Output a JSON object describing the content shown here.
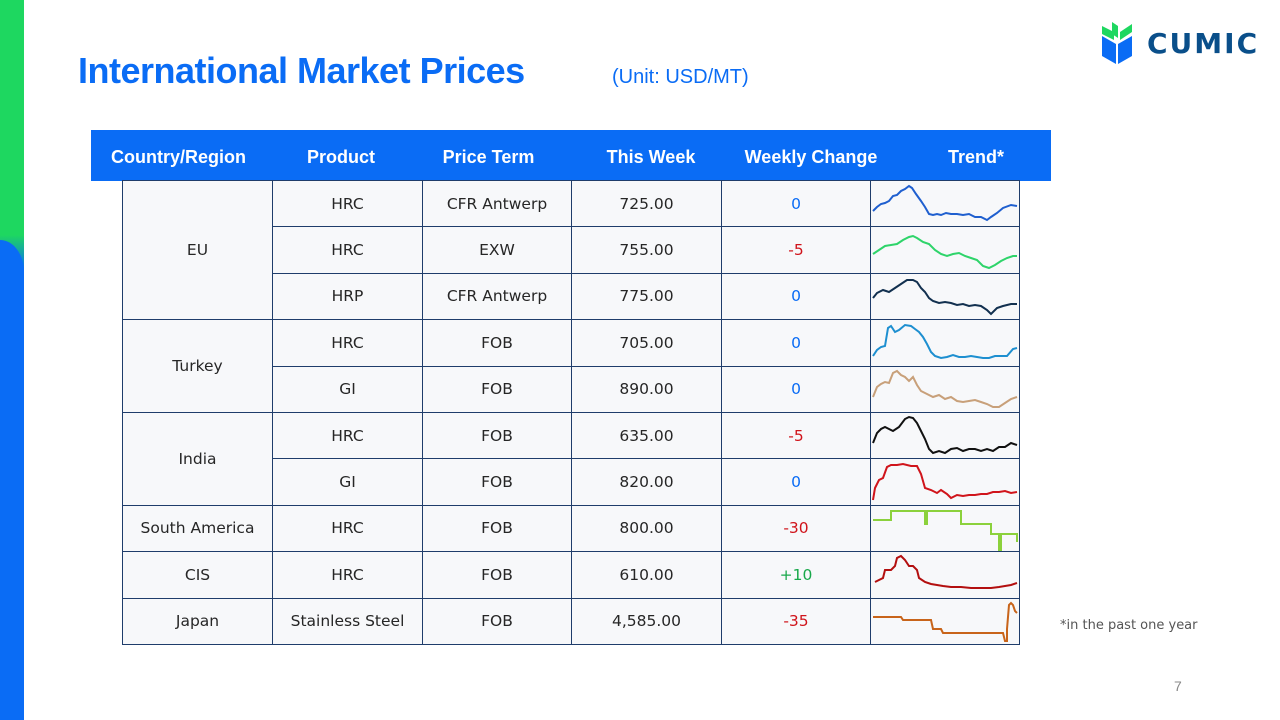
{
  "page": {
    "title": "International Market Prices",
    "unit": "(Unit: USD/MT)",
    "footnote": "*in the past one year",
    "page_number": "7"
  },
  "logo": {
    "text": "CUMIC",
    "colors": [
      "#1ed760",
      "#0a6cf5"
    ]
  },
  "table": {
    "headers": [
      "Country/Region",
      "Product",
      "Price Term",
      "This Week",
      "Weekly Change",
      "Trend*"
    ],
    "regions": [
      "EU",
      "Turkey",
      "India",
      "South America",
      "CIS",
      "Japan"
    ],
    "rows": [
      {
        "product": "HRC",
        "term": "CFR Antwerp",
        "price": "725.00",
        "change": "0",
        "trend_color": "#1f5fcf"
      },
      {
        "product": "HRC",
        "term": "EXW",
        "price": "755.00",
        "change": "-5",
        "trend_color": "#2ed46a"
      },
      {
        "product": "HRP",
        "term": "CFR Antwerp",
        "price": "775.00",
        "change": "0",
        "trend_color": "#12304f"
      },
      {
        "product": "HRC",
        "term": "FOB",
        "price": "705.00",
        "change": "0",
        "trend_color": "#1d8fd0"
      },
      {
        "product": "GI",
        "term": "FOB",
        "price": "890.00",
        "change": "0",
        "trend_color": "#c8a07a"
      },
      {
        "product": "HRC",
        "term": "FOB",
        "price": "635.00",
        "change": "-5",
        "trend_color": "#111111"
      },
      {
        "product": "GI",
        "term": "FOB",
        "price": "820.00",
        "change": "0",
        "trend_color": "#d0141b"
      },
      {
        "product": "HRC",
        "term": "FOB",
        "price": "800.00",
        "change": "-30",
        "trend_color": "#8bd13c"
      },
      {
        "product": "HRC",
        "term": "FOB",
        "price": "610.00",
        "change": "+10",
        "trend_color": "#b30f0f"
      },
      {
        "product": "Stainless Steel",
        "term": "FOB",
        "price": "4,585.00",
        "change": "-35",
        "trend_color": "#c8641a"
      }
    ]
  },
  "colors": {
    "accent": "#0a6cf5",
    "change_zero": "#0a6cf5",
    "change_negative": "#d0141b",
    "change_positive": "#18a84a"
  }
}
